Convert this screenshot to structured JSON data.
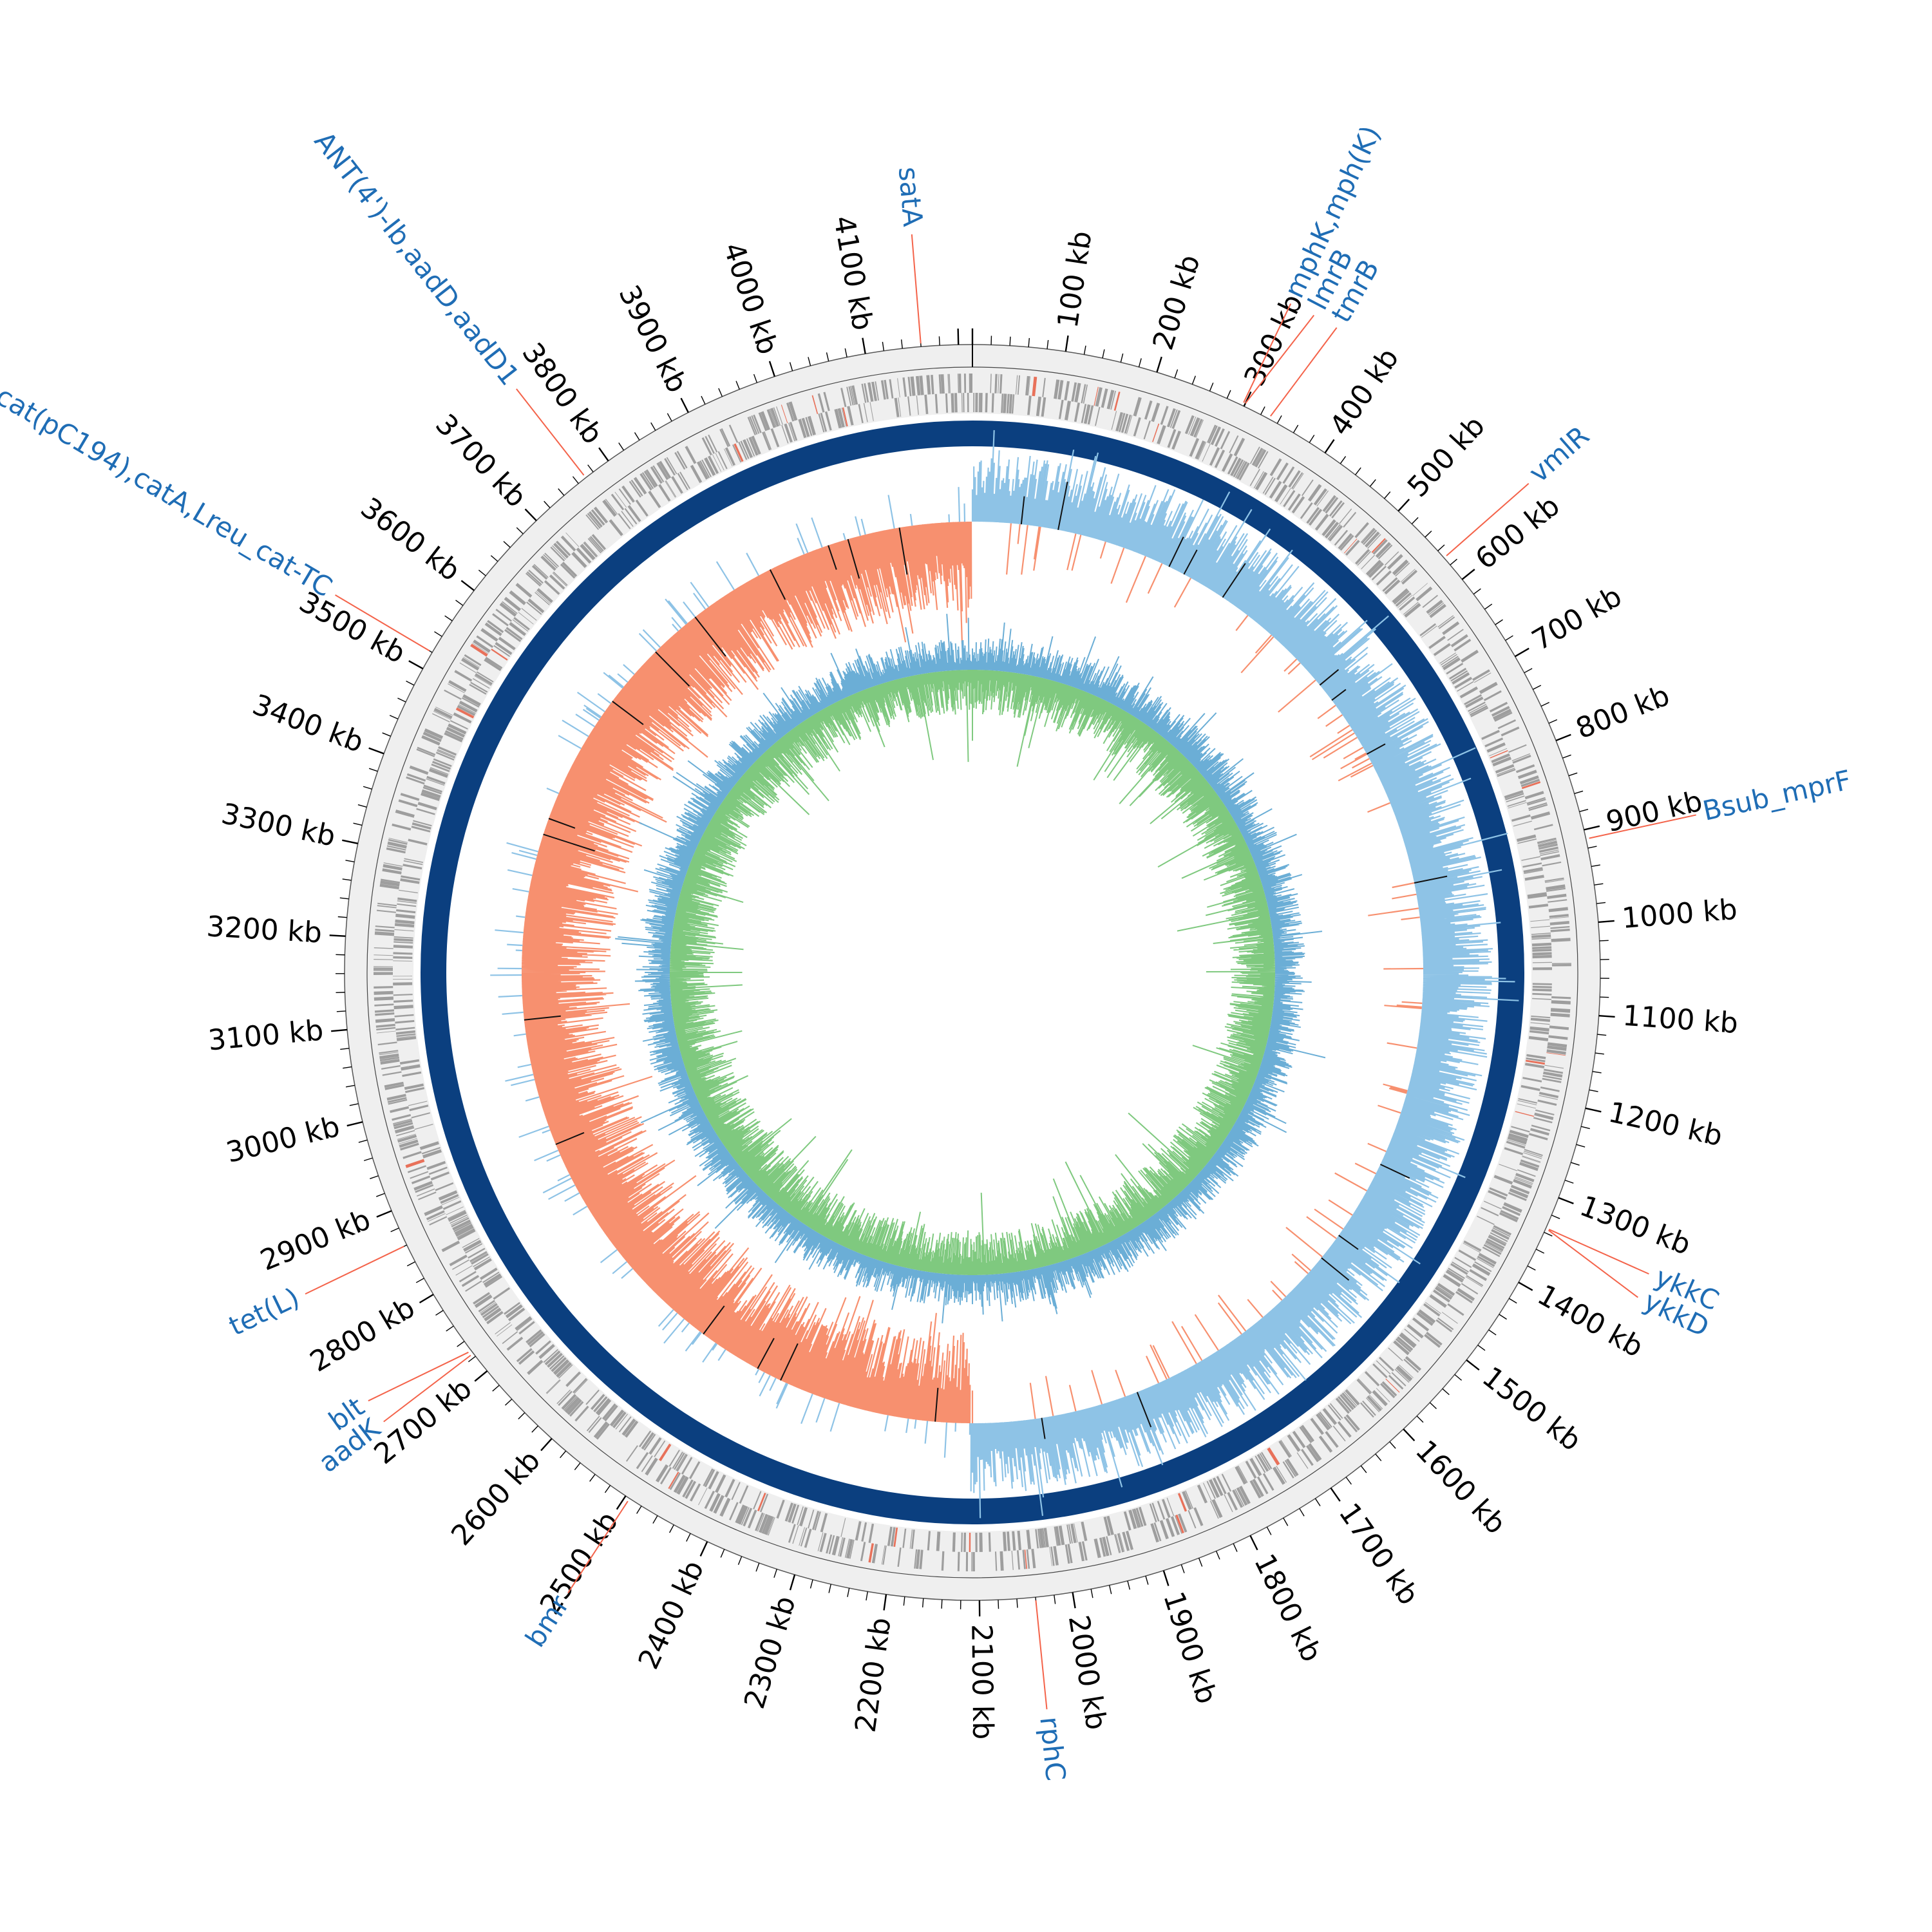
{
  "genome": {
    "total_kb": 4215,
    "tick_label_suffix": " kb",
    "tick_step_kb": 100,
    "tick_labels_kb": [
      100,
      200,
      300,
      400,
      500,
      600,
      700,
      800,
      900,
      1000,
      1100,
      1200,
      1300,
      1400,
      1500,
      1600,
      1700,
      1800,
      1900,
      2000,
      2100,
      2200,
      2300,
      2400,
      2500,
      2600,
      2700,
      2800,
      2900,
      3000,
      3100,
      3200,
      3300,
      3400,
      3500,
      3600,
      3700,
      3800,
      3900,
      4000,
      4100
    ]
  },
  "annotations": [
    {
      "name": "satA",
      "kb": 4160
    },
    {
      "name": "mphK,mph(K)",
      "kb": 298
    },
    {
      "name": "lmrB",
      "kb": 300
    },
    {
      "name": "tmrB",
      "kb": 330
    },
    {
      "name": "vmlR",
      "kb": 570
    },
    {
      "name": "Bsub_mprF",
      "kb": 910
    },
    {
      "name": "ykkC",
      "kb": 1335
    },
    {
      "name": "ykkD",
      "kb": 1336
    },
    {
      "name": "rphC",
      "kb": 2040
    },
    {
      "name": "bmr",
      "kb": 2495
    },
    {
      "name": "aadK",
      "kb": 2724
    },
    {
      "name": "blt",
      "kb": 2728
    },
    {
      "name": "tet(L)",
      "kb": 2860
    },
    {
      "name": "cat(pC194),catA,Lreu_cat-TC",
      "kb": 3520
    },
    {
      "name": "ANT(4')-Ib,aadD,aadD1",
      "kb": 3770
    }
  ],
  "tracks": {
    "cds": {
      "type": "features",
      "color": "#9e9e9e",
      "highlight_color": "#e8715a"
    },
    "backbone": {
      "type": "ring",
      "color": "#0b3f7f"
    },
    "gc_content": {
      "type": "line",
      "above_color": "#8ec3e6",
      "below_color": "#f7906f",
      "spike_color": "#111111"
    },
    "gc_skew": {
      "type": "line",
      "positive_color": "#7fc97f",
      "negative_color": "#6baed6"
    }
  },
  "colors": {
    "leader_line": "#f4634a",
    "label_text": "#1f6db5",
    "outer_band": "#efefef"
  }
}
